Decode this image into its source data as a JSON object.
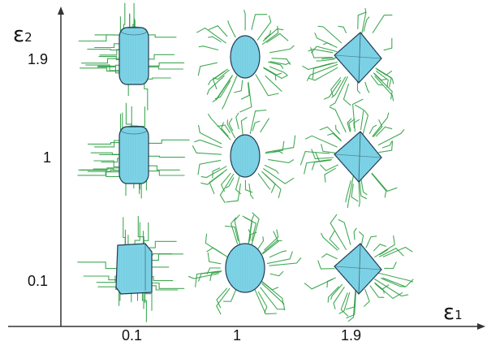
{
  "axes": {
    "x_title": {
      "symbol": "ε",
      "subscript": "1"
    },
    "y_title": {
      "symbol": "ε",
      "subscript": "2"
    },
    "x_ticks": [
      "0.1",
      "1",
      "1.9"
    ],
    "y_ticks": [
      "1.9",
      "1",
      "0.1"
    ]
  },
  "grid": {
    "columns": [
      "0.1",
      "1",
      "1.9"
    ],
    "rows": [
      "1.9",
      "1",
      "0.1"
    ],
    "shapes": [
      [
        "cylinder",
        "sphere",
        "octahedron"
      ],
      [
        "cylinder",
        "sphere",
        "octahedron"
      ],
      [
        "cube",
        "sphere",
        "octahedron"
      ]
    ]
  },
  "colors": {
    "axis": "#333333",
    "wire": "#2ea043",
    "fill": "#7fd3e6",
    "edge": "#1f3a50"
  }
}
